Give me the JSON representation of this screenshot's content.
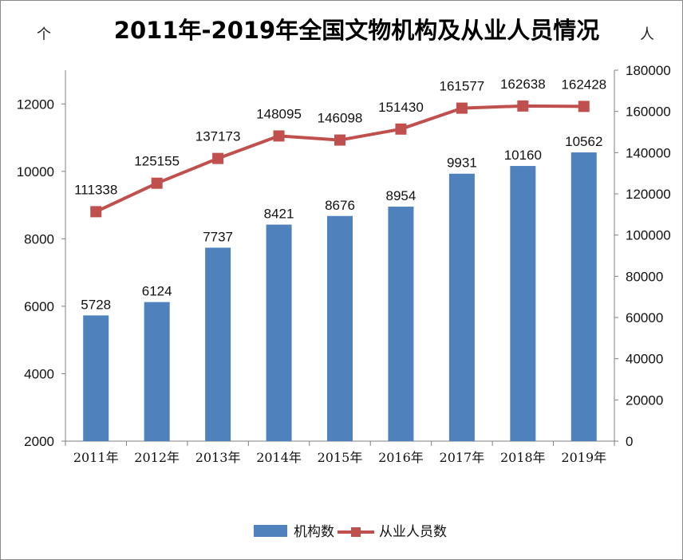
{
  "chart_data": {
    "type": "bar+line",
    "title": "2011年-2019年全国文物机构及从业人员情况",
    "left_unit": "个",
    "right_unit": "人",
    "categories": [
      "2011年",
      "2012年",
      "2013年",
      "2014年",
      "2015年",
      "2016年",
      "2017年",
      "2018年",
      "2019年"
    ],
    "series": [
      {
        "name": "机构数",
        "type": "bar",
        "axis": "left",
        "color": "#4f81bd",
        "values": [
          5728,
          6124,
          7737,
          8421,
          8676,
          8954,
          9931,
          10160,
          10562
        ]
      },
      {
        "name": "从业人员数",
        "type": "line",
        "axis": "right",
        "color": "#c0504d",
        "marker": "square",
        "values": [
          111338,
          125155,
          137173,
          148095,
          146098,
          151430,
          161577,
          162638,
          162428
        ]
      }
    ],
    "y_left": {
      "min": 2000,
      "max": 13000,
      "ticks": [
        2000,
        4000,
        6000,
        8000,
        10000,
        12000
      ]
    },
    "y_right": {
      "min": 0,
      "max": 180000,
      "ticks": [
        0,
        20000,
        40000,
        60000,
        80000,
        100000,
        120000,
        140000,
        160000,
        180000
      ]
    },
    "grid": false,
    "legend_position": "bottom"
  }
}
